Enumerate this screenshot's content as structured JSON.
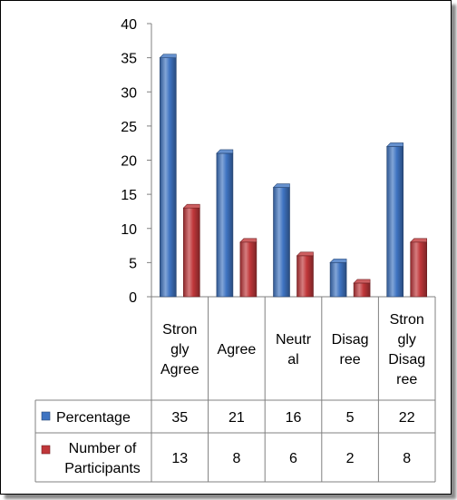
{
  "chart_data": {
    "type": "bar",
    "categories": [
      [
        "Stron",
        "gly",
        "Agree"
      ],
      [
        "Agree"
      ],
      [
        "Neutr",
        "al"
      ],
      [
        "Disag",
        "ree"
      ],
      [
        "Stron",
        "gly",
        "Disag",
        "ree"
      ]
    ],
    "series": [
      {
        "name": "Percentage",
        "values": [
          35,
          21,
          16,
          5,
          22
        ],
        "color": "#3F74C2"
      },
      {
        "name": [
          "Number of",
          "Participants"
        ],
        "values": [
          13,
          8,
          6,
          2,
          8
        ],
        "color": "#C0373A"
      }
    ],
    "ylim": [
      0,
      40
    ],
    "yticks": [
      0,
      5,
      10,
      15,
      20,
      25,
      30,
      35,
      40
    ],
    "grid": false,
    "data_table": true,
    "style": "3d-columns"
  }
}
